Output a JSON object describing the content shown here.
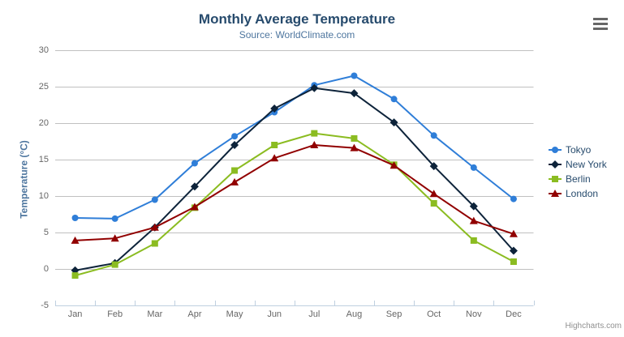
{
  "header": {
    "title": "Monthly Average Temperature",
    "subtitle": "Source: WorldClimate.com"
  },
  "credits": {
    "label": "Highcharts.com"
  },
  "context_menu": {
    "icon": "hamburger-icon"
  },
  "chart_data": {
    "type": "line",
    "title": "Monthly Average Temperature",
    "subtitle": "Source: WorldClimate.com",
    "categories": [
      "Jan",
      "Feb",
      "Mar",
      "Apr",
      "May",
      "Jun",
      "Jul",
      "Aug",
      "Sep",
      "Oct",
      "Nov",
      "Dec"
    ],
    "series": [
      {
        "name": "Tokyo",
        "color": "#2f7ed8",
        "marker": "circle",
        "values": [
          7.0,
          6.9,
          9.5,
          14.5,
          18.2,
          21.5,
          25.2,
          26.5,
          23.3,
          18.3,
          13.9,
          9.6
        ]
      },
      {
        "name": "New York",
        "color": "#0d233a",
        "marker": "diamond",
        "values": [
          -0.2,
          0.8,
          5.7,
          11.3,
          17.0,
          22.0,
          24.8,
          24.1,
          20.1,
          14.1,
          8.6,
          2.5
        ]
      },
      {
        "name": "Berlin",
        "color": "#8bbc21",
        "marker": "square",
        "values": [
          -0.9,
          0.6,
          3.5,
          8.4,
          13.5,
          17.0,
          18.6,
          17.9,
          14.3,
          9.0,
          3.9,
          1.0
        ]
      },
      {
        "name": "London",
        "color": "#910000",
        "marker": "triangle",
        "values": [
          3.9,
          4.2,
          5.7,
          8.5,
          11.9,
          15.2,
          17.0,
          16.6,
          14.2,
          10.3,
          6.6,
          4.8
        ]
      }
    ],
    "xlabel": "",
    "ylabel": "Temperature (°C)",
    "ylim": [
      -5,
      30
    ],
    "ytick_interval": 5,
    "grid": true,
    "legend_position": "right"
  },
  "colors": {
    "title": "#274b6d",
    "subtitle": "#4d759e",
    "axis_title": "#4d759e",
    "tick_label": "#666666",
    "gridline": "#c0c0c0",
    "axis_line": "#c0d0e0",
    "legend_text": "#274b6d",
    "credits": "#909090",
    "menu_icon": "#666666",
    "background": "#ffffff"
  }
}
